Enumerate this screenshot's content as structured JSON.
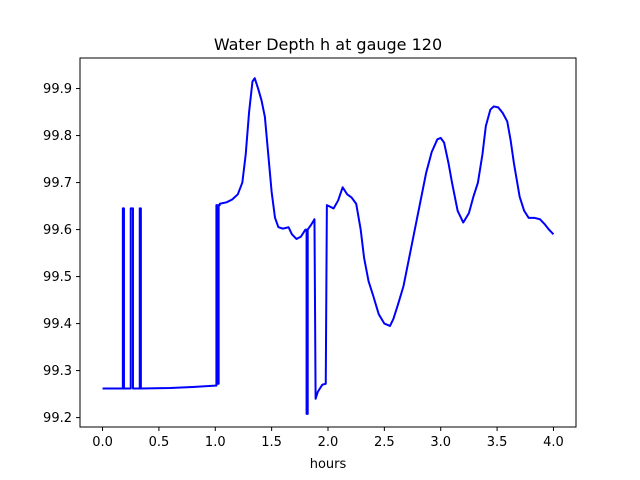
{
  "chart_data": {
    "type": "line",
    "title": "Water Depth h at gauge 120",
    "xlabel": "hours",
    "ylabel": "",
    "xlim": [
      -0.2,
      4.2
    ],
    "ylim": [
      99.18,
      99.965
    ],
    "xticks": [
      0.0,
      0.5,
      1.0,
      1.5,
      2.0,
      2.5,
      3.0,
      3.5,
      4.0
    ],
    "xtick_labels": [
      "0.0",
      "0.5",
      "1.0",
      "1.5",
      "2.0",
      "2.5",
      "3.0",
      "3.5",
      "4.0"
    ],
    "yticks": [
      99.2,
      99.3,
      99.4,
      99.5,
      99.6,
      99.7,
      99.8,
      99.9
    ],
    "ytick_labels": [
      "99.2",
      "99.3",
      "99.4",
      "99.5",
      "99.6",
      "99.7",
      "99.8",
      "99.9"
    ],
    "grid": false,
    "series": [
      {
        "color": "#0000ff",
        "x": [
          0.0,
          0.18,
          0.18,
          0.19,
          0.19,
          0.25,
          0.25,
          0.27,
          0.27,
          0.33,
          0.33,
          0.34,
          0.34,
          0.6,
          0.8,
          1.0,
          1.01,
          1.01,
          1.02,
          1.02,
          1.03,
          1.03,
          1.04,
          1.04,
          1.1,
          1.15,
          1.2,
          1.24,
          1.27,
          1.3,
          1.33,
          1.35,
          1.38,
          1.41,
          1.44,
          1.47,
          1.5,
          1.53,
          1.56,
          1.6,
          1.65,
          1.68,
          1.72,
          1.76,
          1.8,
          1.81,
          1.81,
          1.82,
          1.82,
          1.85,
          1.88,
          1.88,
          1.89,
          1.89,
          1.91,
          1.95,
          1.98,
          1.98,
          1.99,
          1.99,
          2.05,
          2.09,
          2.13,
          2.17,
          2.21,
          2.25,
          2.29,
          2.32,
          2.36,
          2.4,
          2.45,
          2.5,
          2.55,
          2.58,
          2.62,
          2.67,
          2.72,
          2.77,
          2.82,
          2.87,
          2.92,
          2.97,
          3.0,
          3.03,
          3.07,
          3.1,
          3.15,
          3.2,
          3.25,
          3.29,
          3.33,
          3.37,
          3.4,
          3.44,
          3.47,
          3.51,
          3.55,
          3.59,
          3.62,
          3.65,
          3.7,
          3.74,
          3.78,
          3.83,
          3.88,
          3.92,
          3.96,
          4.0
        ],
        "y": [
          99.262,
          99.262,
          99.645,
          99.645,
          99.262,
          99.262,
          99.645,
          99.645,
          99.262,
          99.262,
          99.645,
          99.645,
          99.262,
          99.263,
          99.265,
          99.268,
          99.268,
          99.652,
          99.652,
          99.272,
          99.272,
          99.652,
          99.652,
          99.655,
          99.658,
          99.664,
          99.675,
          99.7,
          99.76,
          99.85,
          99.915,
          99.922,
          99.9,
          99.875,
          99.84,
          99.76,
          99.68,
          99.625,
          99.605,
          99.602,
          99.605,
          99.59,
          99.58,
          99.585,
          99.6,
          99.6,
          99.208,
          99.208,
          99.6,
          99.61,
          99.622,
          99.622,
          99.24,
          99.24,
          99.255,
          99.27,
          99.272,
          99.272,
          99.652,
          99.652,
          99.645,
          99.662,
          99.69,
          99.675,
          99.668,
          99.655,
          99.6,
          99.54,
          99.49,
          99.46,
          99.42,
          99.4,
          99.395,
          99.41,
          99.44,
          99.48,
          99.54,
          99.6,
          99.66,
          99.72,
          99.765,
          99.792,
          99.795,
          99.785,
          99.74,
          99.7,
          99.64,
          99.615,
          99.635,
          99.67,
          99.7,
          99.76,
          99.82,
          99.855,
          99.862,
          99.86,
          99.848,
          99.83,
          99.79,
          99.74,
          99.67,
          99.64,
          99.625,
          99.625,
          99.622,
          99.612,
          99.6,
          99.59
        ]
      }
    ]
  }
}
